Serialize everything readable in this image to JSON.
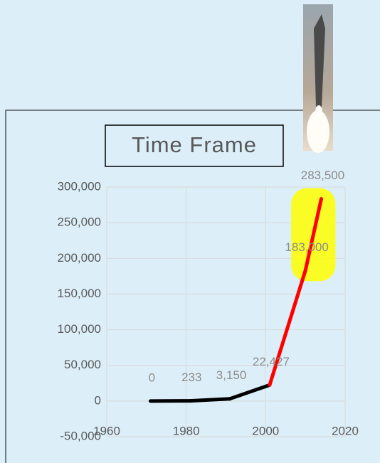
{
  "chart_data": {
    "type": "line",
    "title": "Time Frame",
    "x": [
      1971,
      1981,
      1991,
      2001,
      2010,
      2014
    ],
    "values": [
      0,
      233,
      3150,
      22427,
      183000,
      283500
    ],
    "value_labels": [
      "0",
      "233",
      "3,150",
      "22,427",
      "183,000",
      "283,500"
    ],
    "segment_colors": [
      "#000000",
      "#000000",
      "#000000",
      "#ff0000",
      "#ff0000"
    ],
    "highlight_xrange": [
      2010,
      2014
    ],
    "highlight_color": "#ffff00",
    "xlim": [
      1960,
      2020
    ],
    "xticks": [
      1960,
      1980,
      2000,
      2020
    ],
    "ylim": [
      -50000,
      300000
    ],
    "yticks": [
      {
        "value": -50000,
        "label": "-50,000"
      },
      0,
      {
        "value": 50000,
        "label": "50,000"
      },
      {
        "value": 100000,
        "label": "100,000"
      },
      {
        "value": 150000,
        "label": "150,000"
      },
      {
        "value": 200000,
        "label": "200,000"
      },
      {
        "value": 250000,
        "label": "250,000"
      },
      {
        "value": 300000,
        "label": "300,000"
      }
    ],
    "grid": true
  }
}
